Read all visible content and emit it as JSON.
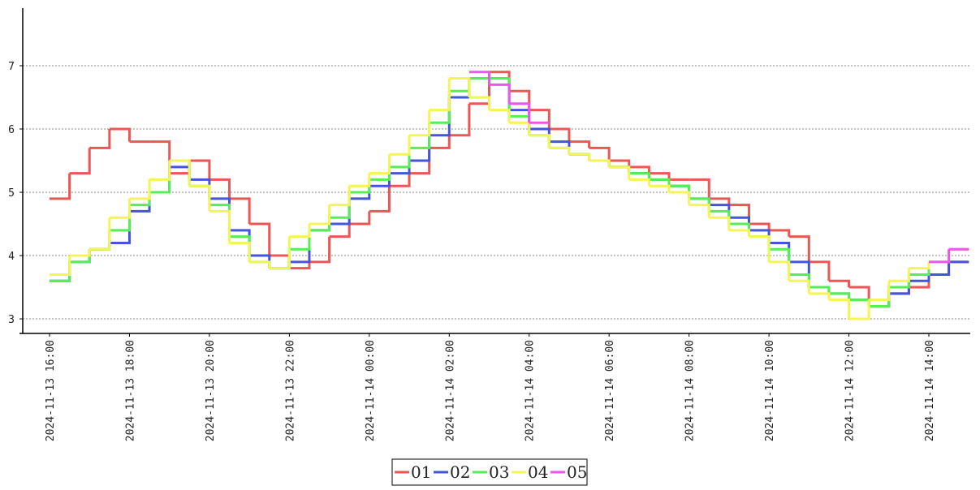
{
  "chart_data": {
    "type": "line",
    "step": "post",
    "x": [
      "2024-11-13 16:00",
      "2024-11-13 16:30",
      "2024-11-13 17:00",
      "2024-11-13 17:30",
      "2024-11-13 18:00",
      "2024-11-13 18:30",
      "2024-11-13 19:00",
      "2024-11-13 19:30",
      "2024-11-13 20:00",
      "2024-11-13 20:30",
      "2024-11-13 21:00",
      "2024-11-13 21:30",
      "2024-11-13 22:00",
      "2024-11-13 22:30",
      "2024-11-13 23:00",
      "2024-11-13 23:30",
      "2024-11-14 00:00",
      "2024-11-14 00:30",
      "2024-11-14 01:00",
      "2024-11-14 01:30",
      "2024-11-14 02:00",
      "2024-11-14 02:30",
      "2024-11-14 03:00",
      "2024-11-14 03:30",
      "2024-11-14 04:00",
      "2024-11-14 04:30",
      "2024-11-14 05:00",
      "2024-11-14 05:30",
      "2024-11-14 06:00",
      "2024-11-14 06:30",
      "2024-11-14 07:00",
      "2024-11-14 07:30",
      "2024-11-14 08:00",
      "2024-11-14 08:30",
      "2024-11-14 09:00",
      "2024-11-14 09:30",
      "2024-11-14 10:00",
      "2024-11-14 10:30",
      "2024-11-14 11:00",
      "2024-11-14 11:30",
      "2024-11-14 12:00",
      "2024-11-14 12:30",
      "2024-11-14 13:00",
      "2024-11-14 13:30",
      "2024-11-14 14:00",
      "2024-11-14 14:30"
    ],
    "series": [
      {
        "name": "01",
        "color": "#ee5555",
        "values": [
          4.9,
          5.3,
          5.7,
          6.0,
          5.8,
          5.8,
          5.3,
          5.5,
          5.2,
          4.9,
          4.5,
          4.0,
          3.8,
          3.9,
          4.3,
          4.5,
          4.7,
          5.1,
          5.3,
          5.7,
          5.9,
          6.4,
          6.9,
          6.6,
          6.3,
          6.0,
          5.8,
          5.7,
          5.5,
          5.4,
          5.3,
          5.2,
          5.2,
          4.9,
          4.8,
          4.5,
          4.4,
          4.3,
          3.9,
          3.6,
          3.5,
          3.2,
          3.4,
          3.5,
          3.7,
          3.9
        ]
      },
      {
        "name": "02",
        "color": "#4455dd",
        "values": [
          3.6,
          3.9,
          4.1,
          4.2,
          4.7,
          5.0,
          5.4,
          5.2,
          4.9,
          4.4,
          4.0,
          3.8,
          3.9,
          4.4,
          4.5,
          4.9,
          5.1,
          5.3,
          5.5,
          5.9,
          6.5,
          6.8,
          6.8,
          6.3,
          6.0,
          5.8,
          5.6,
          5.5,
          5.4,
          5.3,
          5.2,
          5.1,
          4.9,
          4.8,
          4.6,
          4.4,
          4.2,
          3.9,
          3.5,
          3.4,
          3.3,
          3.2,
          3.4,
          3.6,
          3.7,
          3.9
        ]
      },
      {
        "name": "03",
        "color": "#55ee55",
        "values": [
          3.6,
          3.9,
          4.1,
          4.4,
          4.8,
          5.0,
          5.5,
          5.1,
          4.8,
          4.3,
          3.9,
          3.8,
          4.1,
          4.4,
          4.6,
          5.0,
          5.2,
          5.4,
          5.7,
          6.1,
          6.6,
          6.8,
          6.8,
          6.2,
          5.9,
          5.7,
          5.6,
          5.5,
          5.4,
          5.3,
          5.2,
          5.1,
          4.9,
          4.7,
          4.5,
          4.3,
          4.1,
          3.7,
          3.5,
          3.4,
          3.3,
          3.2,
          3.5,
          3.7,
          3.9,
          4.1
        ]
      },
      {
        "name": "04",
        "color": "#f4f455",
        "values": [
          3.7,
          4.0,
          4.1,
          4.6,
          4.9,
          5.2,
          5.5,
          5.1,
          4.7,
          4.2,
          3.9,
          3.8,
          4.3,
          4.5,
          4.8,
          5.1,
          5.3,
          5.6,
          5.9,
          6.3,
          6.8,
          6.5,
          6.3,
          6.1,
          5.9,
          5.7,
          5.6,
          5.5,
          5.4,
          5.2,
          5.1,
          5.0,
          4.8,
          4.6,
          4.4,
          4.3,
          3.9,
          3.6,
          3.4,
          3.3,
          3.0,
          3.3,
          3.6,
          3.8,
          3.9,
          4.1
        ]
      },
      {
        "name": "05",
        "color": "#ee55ee",
        "values": [
          null,
          null,
          null,
          null,
          null,
          null,
          null,
          null,
          null,
          null,
          null,
          null,
          null,
          null,
          null,
          null,
          null,
          null,
          null,
          null,
          null,
          6.9,
          6.7,
          6.4,
          6.1,
          null,
          null,
          null,
          null,
          null,
          null,
          null,
          null,
          null,
          null,
          null,
          null,
          null,
          null,
          null,
          null,
          null,
          null,
          null,
          3.9,
          4.1
        ]
      }
    ],
    "xticks": [
      "2024-11-13 16:00",
      "2024-11-13 18:00",
      "2024-11-13 20:00",
      "2024-11-13 22:00",
      "2024-11-14 00:00",
      "2024-11-14 02:00",
      "2024-11-14 04:00",
      "2024-11-14 06:00",
      "2024-11-14 08:00",
      "2024-11-14 10:00",
      "2024-11-14 12:00",
      "2024-11-14 14:00"
    ],
    "ylim": [
      2.77,
      7.91
    ],
    "yticks": [
      3,
      4,
      5,
      6,
      7
    ],
    "grid": true,
    "legend": "bottom"
  }
}
